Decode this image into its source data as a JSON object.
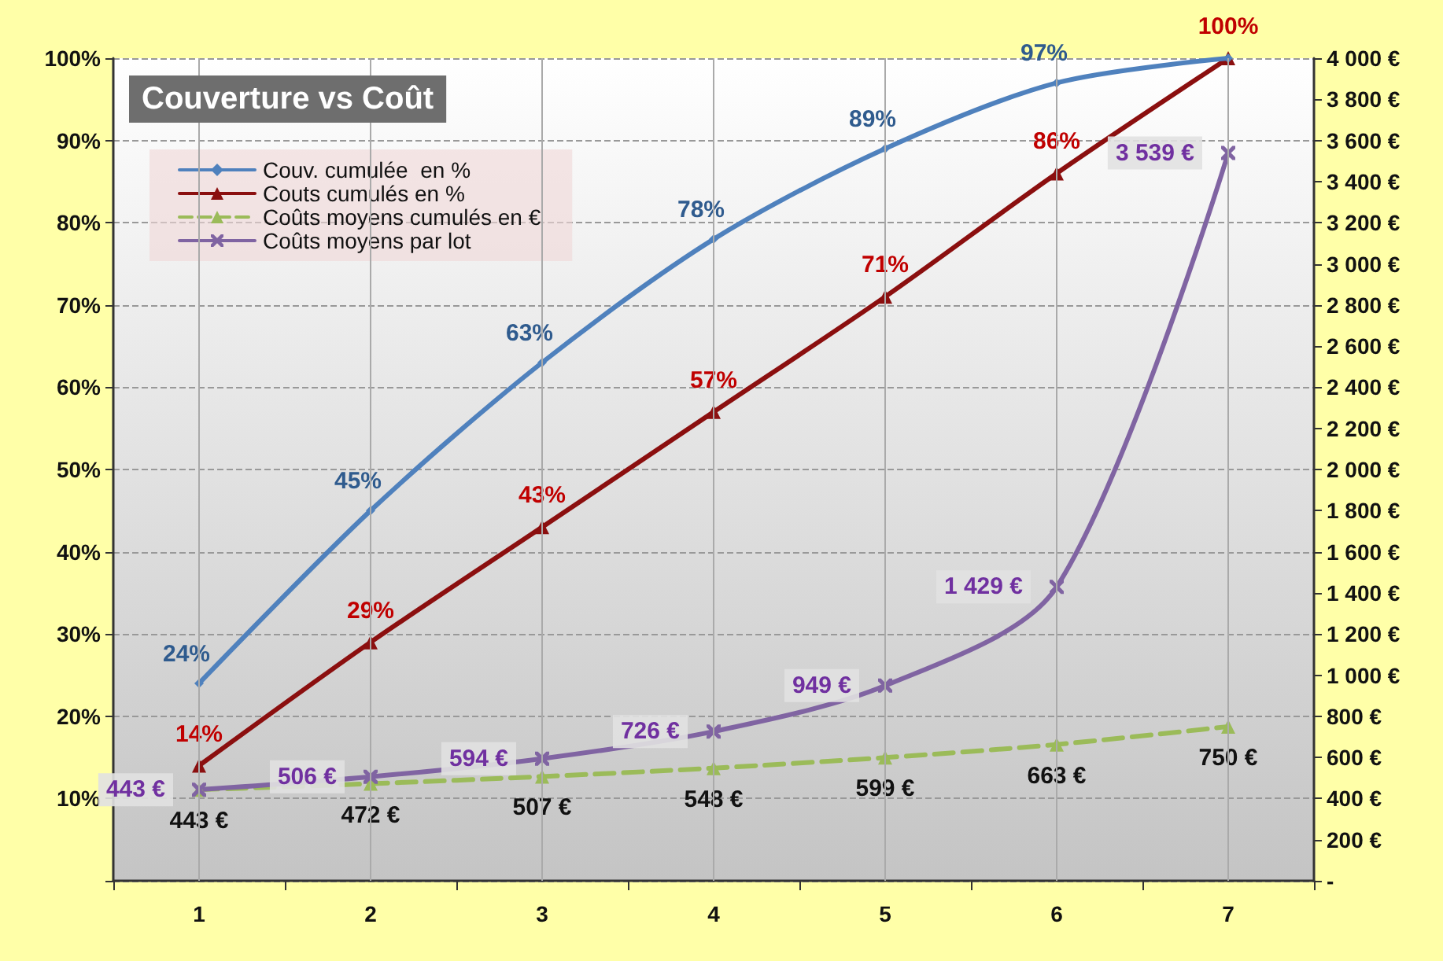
{
  "chart_data": {
    "type": "line",
    "title": "Couverture vs Coût",
    "categories": [
      "1",
      "2",
      "3",
      "4",
      "5",
      "6",
      "7"
    ],
    "series": [
      {
        "name": "Couv. cumulée  en %",
        "color": "#4f81bd",
        "marker": "diamond",
        "values": [
          24,
          45,
          63,
          78,
          89,
          97,
          100
        ],
        "value_labels": [
          "24%",
          "45%",
          "63%",
          "78%",
          "89%",
          "97%",
          null
        ]
      },
      {
        "name": "Couts cumulés en %",
        "color": "#8b0f0f",
        "marker": "triangle",
        "values": [
          14,
          29,
          43,
          57,
          71,
          86,
          100
        ],
        "value_labels": [
          "14%",
          "29%",
          "43%",
          "57%",
          "71%",
          "86%",
          "100%"
        ]
      },
      {
        "name": "Coûts moyens cumulés en €",
        "color": "#9bbb59",
        "marker": "triangle",
        "line_style": "dashed",
        "axis": "y2",
        "values": [
          443,
          472,
          507,
          548,
          599,
          663,
          750
        ],
        "value_labels": [
          "443 €",
          "472 €",
          "507 €",
          "548 €",
          "599 €",
          "663 €",
          "750 €"
        ]
      },
      {
        "name": "Coûts moyens par lot",
        "color": "#8064a2",
        "marker": "cross",
        "axis": "y2",
        "values": [
          443,
          506,
          594,
          726,
          949,
          1429,
          3539
        ],
        "value_labels": [
          "443 €",
          "506 €",
          "594 €",
          "726 €",
          "949 €",
          "1 429 €",
          "3 539 €"
        ]
      }
    ],
    "ylim": [
      0,
      100
    ],
    "yticks": [
      {
        "value": 0,
        "label": null
      },
      {
        "value": 10,
        "label": "10%"
      },
      {
        "value": 20,
        "label": "20%"
      },
      {
        "value": 30,
        "label": "30%"
      },
      {
        "value": 40,
        "label": "40%"
      },
      {
        "value": 50,
        "label": "50%"
      },
      {
        "value": 60,
        "label": "60%"
      },
      {
        "value": 70,
        "label": "70%"
      },
      {
        "value": 80,
        "label": "80%"
      },
      {
        "value": 90,
        "label": "90%"
      },
      {
        "value": 100,
        "label": "100%"
      }
    ],
    "y2lim": [
      0,
      4000
    ],
    "y2ticks": [
      {
        "value": 0,
        "label": "-"
      },
      {
        "value": 200,
        "label": "200 €"
      },
      {
        "value": 400,
        "label": "400 €"
      },
      {
        "value": 600,
        "label": "600 €"
      },
      {
        "value": 800,
        "label": "800 €"
      },
      {
        "value": 1000,
        "label": "1 000 €"
      },
      {
        "value": 1200,
        "label": "1 200 €"
      },
      {
        "value": 1400,
        "label": "1 400 €"
      },
      {
        "value": 1600,
        "label": "1 600 €"
      },
      {
        "value": 1800,
        "label": "1 800 €"
      },
      {
        "value": 2000,
        "label": "2 000 €"
      },
      {
        "value": 2200,
        "label": "2 200 €"
      },
      {
        "value": 2400,
        "label": "2 400 €"
      },
      {
        "value": 2600,
        "label": "2 600 €"
      },
      {
        "value": 2800,
        "label": "2 800 €"
      },
      {
        "value": 3000,
        "label": "3 000 €"
      },
      {
        "value": 3200,
        "label": "3 200 €"
      },
      {
        "value": 3400,
        "label": "3 400 €"
      },
      {
        "value": 3600,
        "label": "3 600 €"
      },
      {
        "value": 3800,
        "label": "3 800 €"
      },
      {
        "value": 4000,
        "label": "4 000 €"
      }
    ],
    "grid": true,
    "legend": "top left"
  }
}
